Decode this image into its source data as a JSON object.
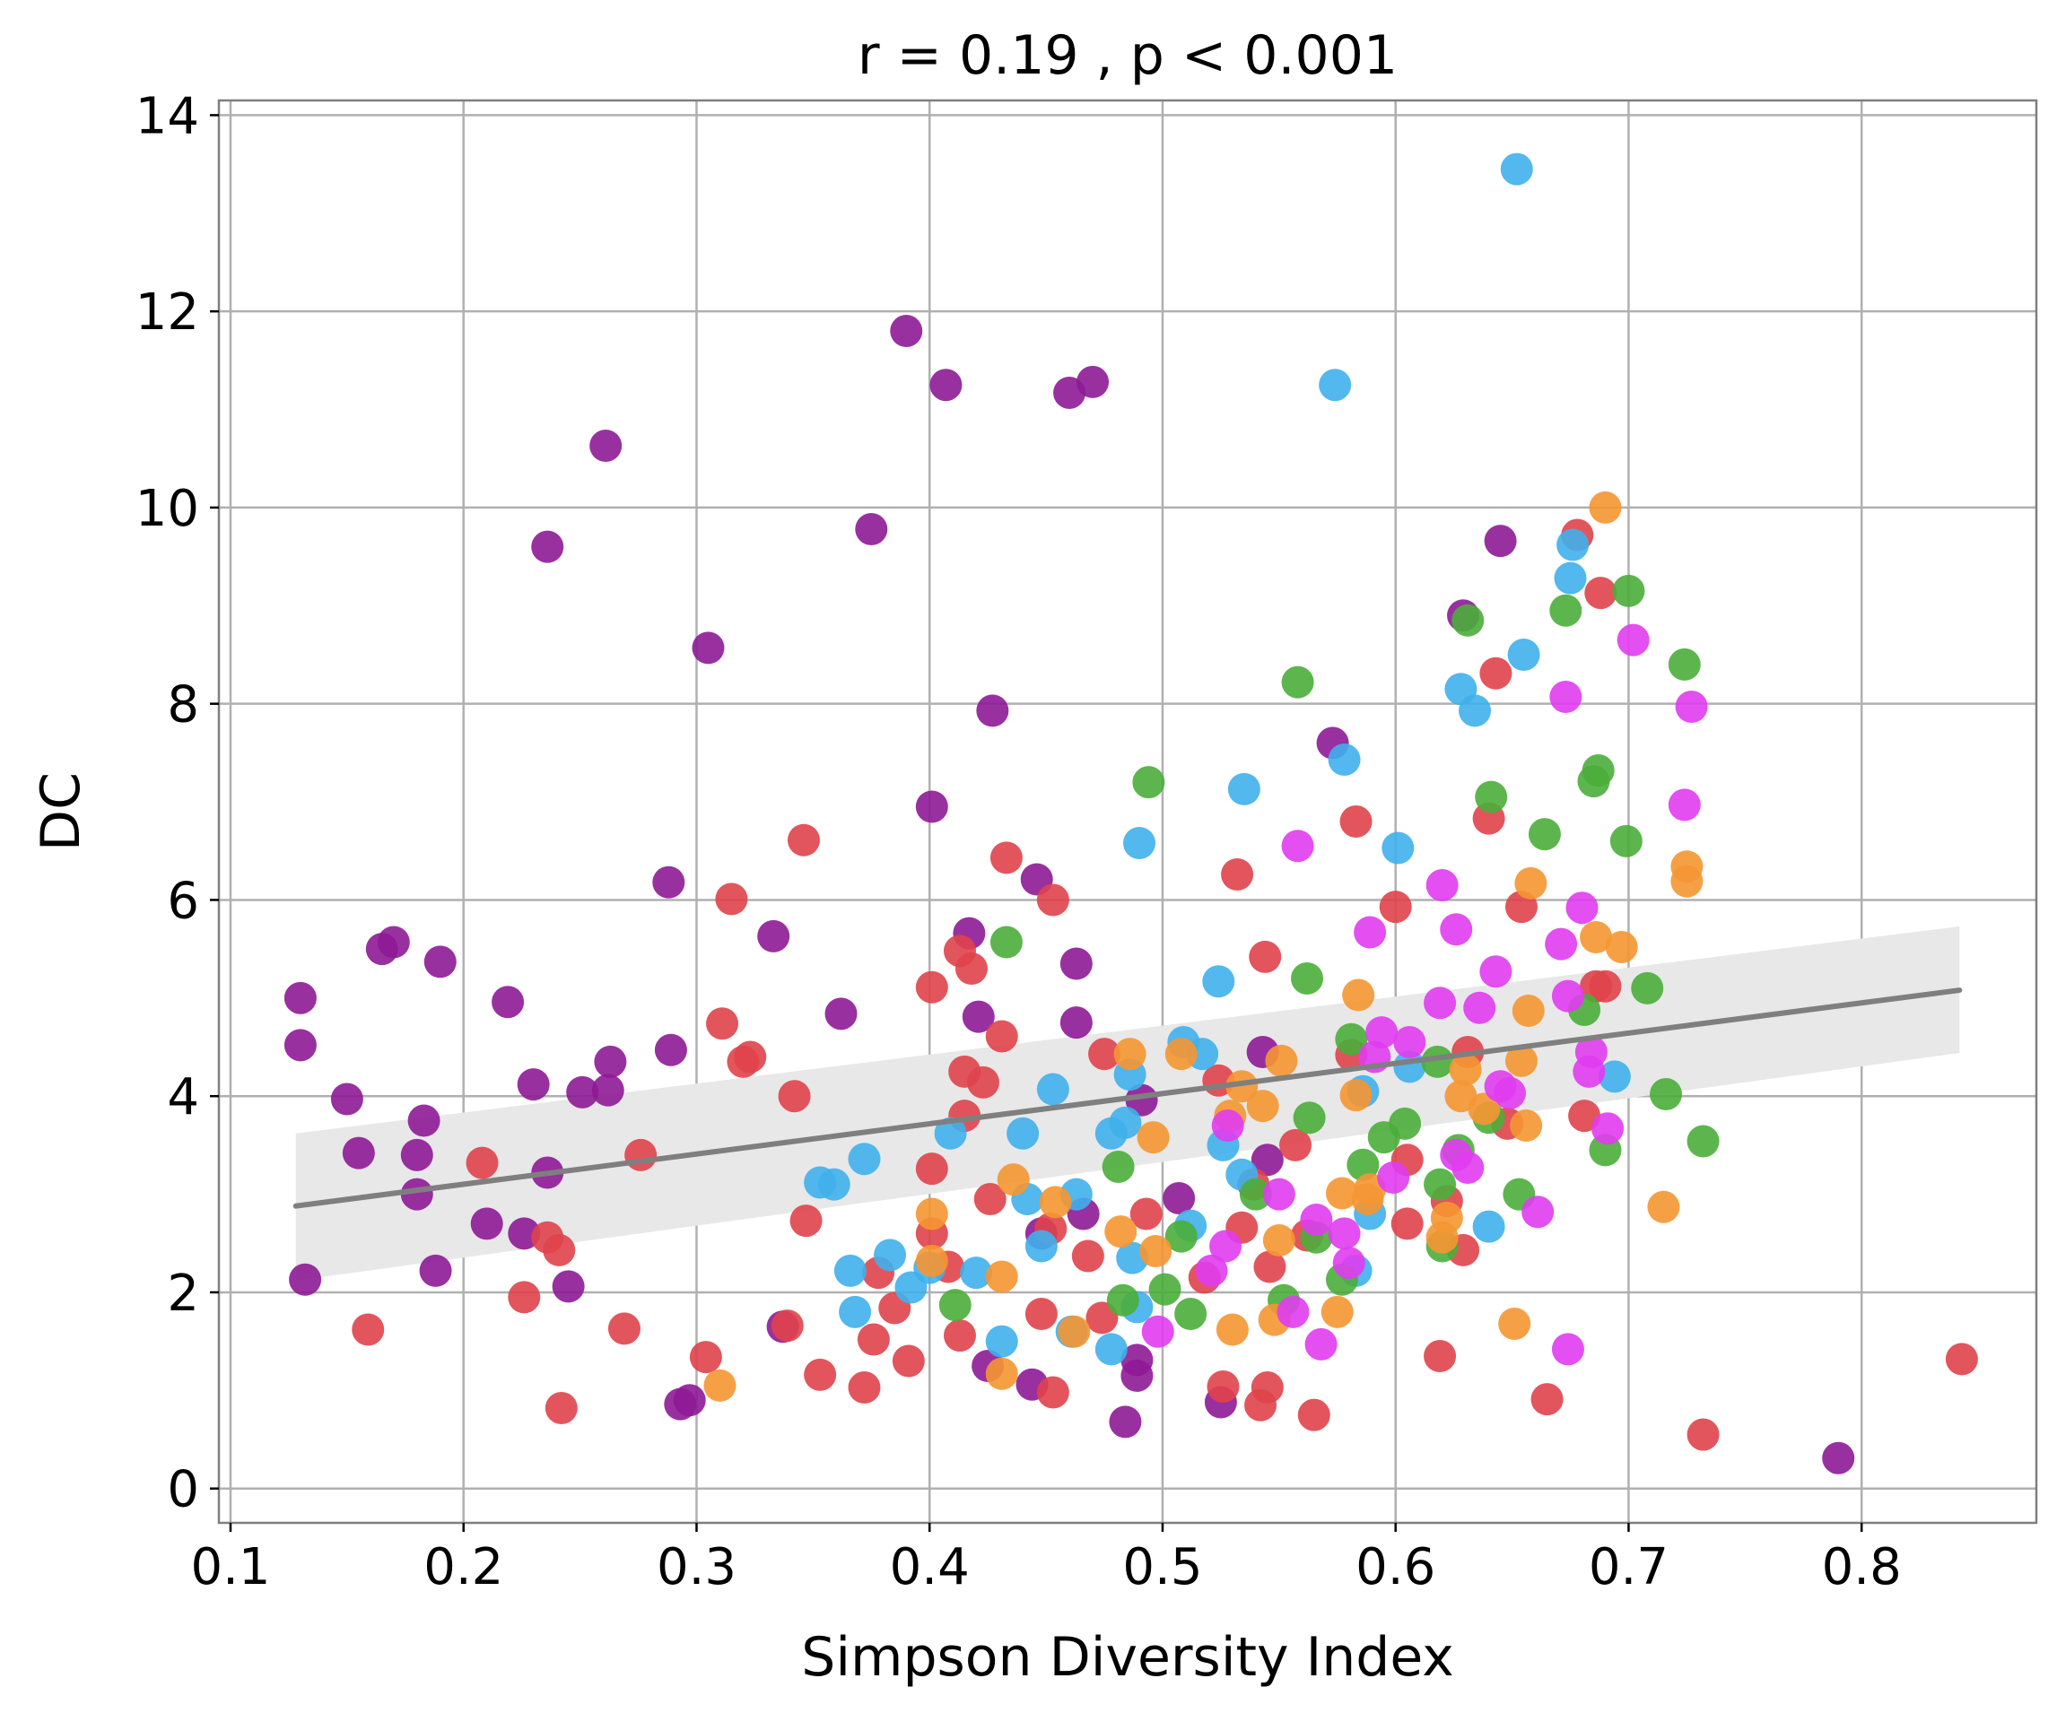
{
  "chart_data": {
    "type": "scatter",
    "title": "r = 0.19 , p <  0.001",
    "xlabel": "Simpson Diversity Index",
    "ylabel": "DC",
    "xlim": [
      0.095,
      0.875
    ],
    "ylim": [
      -0.35,
      14.15
    ],
    "xticks": [
      0.1,
      0.2,
      0.3,
      0.4,
      0.5,
      0.6,
      0.7,
      0.8
    ],
    "xtick_labels": [
      "0.1",
      "0.2",
      "0.3",
      "0.4",
      "0.5",
      "0.6",
      "0.7",
      "0.8"
    ],
    "yticks": [
      0,
      2,
      4,
      6,
      8,
      10,
      12,
      14
    ],
    "ytick_labels": [
      "0",
      "2",
      "4",
      "6",
      "8",
      "10",
      "12",
      "14"
    ],
    "grid": true,
    "legend": "none",
    "colors": {
      "purple": "#8e1a96",
      "red": "#e0434a",
      "blue": "#3fb0ec",
      "green": "#4aae3a",
      "orange": "#f59632",
      "magenta": "#e03cf0",
      "regression_line": "#7f7f7f",
      "confidence_band": "#e8e8e8"
    },
    "series": [
      {
        "color_key": "purple",
        "points": [
          [
            0.13,
            5.0
          ],
          [
            0.13,
            4.52
          ],
          [
            0.132,
            2.13
          ],
          [
            0.15,
            3.97
          ],
          [
            0.155,
            3.42
          ],
          [
            0.165,
            5.5
          ],
          [
            0.17,
            5.57
          ],
          [
            0.18,
            3.0
          ],
          [
            0.18,
            3.4
          ],
          [
            0.183,
            3.75
          ],
          [
            0.188,
            2.22
          ],
          [
            0.19,
            5.37
          ],
          [
            0.21,
            2.7
          ],
          [
            0.219,
            4.96
          ],
          [
            0.226,
            2.6
          ],
          [
            0.23,
            4.12
          ],
          [
            0.236,
            3.22
          ],
          [
            0.236,
            9.6
          ],
          [
            0.245,
            2.06
          ],
          [
            0.251,
            4.04
          ],
          [
            0.262,
            4.06
          ],
          [
            0.261,
            10.63
          ],
          [
            0.263,
            4.35
          ],
          [
            0.288,
            6.18
          ],
          [
            0.289,
            4.47
          ],
          [
            0.293,
            0.86
          ],
          [
            0.297,
            0.9
          ],
          [
            0.305,
            8.57
          ],
          [
            0.333,
            5.63
          ],
          [
            0.337,
            1.65
          ],
          [
            0.362,
            4.84
          ],
          [
            0.375,
            9.78
          ],
          [
            0.39,
            11.8
          ],
          [
            0.401,
            6.95
          ],
          [
            0.407,
            11.25
          ],
          [
            0.417,
            5.66
          ],
          [
            0.421,
            4.81
          ],
          [
            0.425,
            1.25
          ],
          [
            0.427,
            7.93
          ],
          [
            0.444,
            1.06
          ],
          [
            0.446,
            6.21
          ],
          [
            0.448,
            2.6
          ],
          [
            0.46,
            11.17
          ],
          [
            0.463,
            5.35
          ],
          [
            0.463,
            4.75
          ],
          [
            0.466,
            2.8
          ],
          [
            0.47,
            11.28
          ],
          [
            0.484,
            0.68
          ],
          [
            0.489,
            1.15
          ],
          [
            0.489,
            1.31
          ],
          [
            0.491,
            3.96
          ],
          [
            0.507,
            2.96
          ],
          [
            0.525,
            0.88
          ],
          [
            0.543,
            4.45
          ],
          [
            0.545,
            3.35
          ],
          [
            0.573,
            7.6
          ],
          [
            0.629,
            8.9
          ],
          [
            0.645,
            9.66
          ],
          [
            0.79,
            0.31
          ]
        ]
      },
      {
        "color_key": "red",
        "points": [
          [
            0.159,
            1.62
          ],
          [
            0.208,
            3.32
          ],
          [
            0.226,
            1.95
          ],
          [
            0.236,
            2.56
          ],
          [
            0.241,
            2.43
          ],
          [
            0.242,
            0.82
          ],
          [
            0.269,
            1.63
          ],
          [
            0.276,
            3.4
          ],
          [
            0.304,
            1.34
          ],
          [
            0.311,
            4.74
          ],
          [
            0.315,
            6.01
          ],
          [
            0.32,
            4.35
          ],
          [
            0.323,
            4.4
          ],
          [
            0.339,
            1.66
          ],
          [
            0.342,
            4.0
          ],
          [
            0.346,
            6.61
          ],
          [
            0.347,
            2.73
          ],
          [
            0.353,
            1.16
          ],
          [
            0.372,
            1.03
          ],
          [
            0.376,
            1.52
          ],
          [
            0.378,
            2.2
          ],
          [
            0.385,
            1.84
          ],
          [
            0.391,
            1.3
          ],
          [
            0.401,
            5.11
          ],
          [
            0.401,
            3.26
          ],
          [
            0.401,
            2.6
          ],
          [
            0.408,
            2.26
          ],
          [
            0.413,
            5.48
          ],
          [
            0.413,
            1.56
          ],
          [
            0.415,
            3.8
          ],
          [
            0.415,
            4.25
          ],
          [
            0.418,
            5.3
          ],
          [
            0.423,
            4.14
          ],
          [
            0.426,
            2.95
          ],
          [
            0.431,
            4.61
          ],
          [
            0.433,
            6.43
          ],
          [
            0.448,
            1.78
          ],
          [
            0.452,
            2.65
          ],
          [
            0.453,
            6.0
          ],
          [
            0.453,
            0.98
          ],
          [
            0.468,
            2.37
          ],
          [
            0.474,
            1.74
          ],
          [
            0.475,
            4.43
          ],
          [
            0.493,
            2.8
          ],
          [
            0.518,
            2.15
          ],
          [
            0.524,
            4.16
          ],
          [
            0.526,
            1.04
          ],
          [
            0.532,
            6.26
          ],
          [
            0.534,
            2.66
          ],
          [
            0.539,
            3.1
          ],
          [
            0.542,
            0.85
          ],
          [
            0.544,
            5.42
          ],
          [
            0.545,
            1.03
          ],
          [
            0.546,
            2.26
          ],
          [
            0.557,
            3.5
          ],
          [
            0.562,
            2.58
          ],
          [
            0.565,
            0.75
          ],
          [
            0.581,
            4.42
          ],
          [
            0.583,
            6.8
          ],
          [
            0.6,
            5.93
          ],
          [
            0.605,
            2.7
          ],
          [
            0.605,
            3.35
          ],
          [
            0.619,
            1.35
          ],
          [
            0.622,
            2.93
          ],
          [
            0.629,
            2.43
          ],
          [
            0.631,
            4.45
          ],
          [
            0.64,
            6.83
          ],
          [
            0.643,
            8.31
          ],
          [
            0.648,
            3.72
          ],
          [
            0.654,
            5.93
          ],
          [
            0.665,
            0.91
          ],
          [
            0.678,
            9.72
          ],
          [
            0.681,
            3.8
          ],
          [
            0.686,
            5.12
          ],
          [
            0.688,
            9.13
          ],
          [
            0.69,
            5.12
          ],
          [
            0.732,
            0.55
          ],
          [
            0.843,
            1.32
          ]
        ]
      },
      {
        "color_key": "blue",
        "points": [
          [
            0.353,
            3.12
          ],
          [
            0.359,
            3.1
          ],
          [
            0.366,
            2.22
          ],
          [
            0.368,
            1.8
          ],
          [
            0.372,
            3.36
          ],
          [
            0.383,
            2.38
          ],
          [
            0.392,
            2.05
          ],
          [
            0.4,
            2.25
          ],
          [
            0.409,
            3.62
          ],
          [
            0.42,
            2.2
          ],
          [
            0.431,
            1.5
          ],
          [
            0.44,
            3.62
          ],
          [
            0.442,
            2.95
          ],
          [
            0.448,
            2.47
          ],
          [
            0.453,
            4.07
          ],
          [
            0.461,
            1.6
          ],
          [
            0.463,
            3.0
          ],
          [
            0.478,
            1.42
          ],
          [
            0.478,
            3.62
          ],
          [
            0.484,
            3.73
          ],
          [
            0.486,
            4.22
          ],
          [
            0.487,
            2.35
          ],
          [
            0.489,
            1.85
          ],
          [
            0.49,
            6.58
          ],
          [
            0.509,
            4.55
          ],
          [
            0.512,
            2.68
          ],
          [
            0.517,
            4.43
          ],
          [
            0.524,
            5.17
          ],
          [
            0.526,
            3.5
          ],
          [
            0.534,
            3.2
          ],
          [
            0.535,
            7.13
          ],
          [
            0.574,
            11.25
          ],
          [
            0.578,
            7.43
          ],
          [
            0.583,
            2.22
          ],
          [
            0.586,
            4.05
          ],
          [
            0.589,
            2.8
          ],
          [
            0.601,
            6.53
          ],
          [
            0.606,
            4.3
          ],
          [
            0.628,
            8.15
          ],
          [
            0.634,
            7.93
          ],
          [
            0.64,
            2.67
          ],
          [
            0.652,
            13.45
          ],
          [
            0.655,
            8.5
          ],
          [
            0.675,
            9.28
          ],
          [
            0.676,
            9.62
          ],
          [
            0.694,
            4.2
          ]
        ]
      },
      {
        "color_key": "green",
        "points": [
          [
            0.411,
            1.87
          ],
          [
            0.433,
            5.57
          ],
          [
            0.481,
            3.28
          ],
          [
            0.483,
            1.92
          ],
          [
            0.494,
            7.2
          ],
          [
            0.501,
            2.03
          ],
          [
            0.508,
            2.57
          ],
          [
            0.512,
            1.78
          ],
          [
            0.54,
            3.0
          ],
          [
            0.552,
            1.92
          ],
          [
            0.558,
            8.22
          ],
          [
            0.562,
            5.2
          ],
          [
            0.563,
            3.78
          ],
          [
            0.566,
            2.56
          ],
          [
            0.577,
            2.13
          ],
          [
            0.581,
            4.58
          ],
          [
            0.586,
            3.3
          ],
          [
            0.595,
            3.58
          ],
          [
            0.604,
            3.72
          ],
          [
            0.618,
            4.35
          ],
          [
            0.619,
            3.1
          ],
          [
            0.62,
            2.47
          ],
          [
            0.627,
            3.45
          ],
          [
            0.631,
            8.85
          ],
          [
            0.64,
            3.78
          ],
          [
            0.641,
            7.05
          ],
          [
            0.653,
            3.0
          ],
          [
            0.664,
            6.67
          ],
          [
            0.673,
            8.95
          ],
          [
            0.681,
            4.88
          ],
          [
            0.685,
            7.21
          ],
          [
            0.687,
            7.32
          ],
          [
            0.69,
            3.45
          ],
          [
            0.699,
            6.6
          ],
          [
            0.7,
            9.15
          ],
          [
            0.708,
            5.1
          ],
          [
            0.716,
            4.02
          ],
          [
            0.724,
            8.4
          ],
          [
            0.732,
            3.54
          ]
        ]
      },
      {
        "color_key": "orange",
        "points": [
          [
            0.31,
            1.05
          ],
          [
            0.401,
            2.8
          ],
          [
            0.401,
            2.32
          ],
          [
            0.431,
            1.17
          ],
          [
            0.431,
            2.16
          ],
          [
            0.436,
            3.15
          ],
          [
            0.454,
            2.92
          ],
          [
            0.462,
            1.6
          ],
          [
            0.482,
            2.62
          ],
          [
            0.486,
            4.43
          ],
          [
            0.496,
            3.58
          ],
          [
            0.497,
            2.42
          ],
          [
            0.508,
            4.43
          ],
          [
            0.529,
            3.8
          ],
          [
            0.53,
            1.62
          ],
          [
            0.534,
            4.1
          ],
          [
            0.543,
            3.9
          ],
          [
            0.548,
            1.72
          ],
          [
            0.55,
            2.53
          ],
          [
            0.551,
            4.36
          ],
          [
            0.575,
            1.8
          ],
          [
            0.577,
            3.01
          ],
          [
            0.583,
            4.01
          ],
          [
            0.584,
            5.03
          ],
          [
            0.588,
            2.95
          ],
          [
            0.589,
            3.05
          ],
          [
            0.62,
            2.56
          ],
          [
            0.622,
            2.76
          ],
          [
            0.628,
            4.0
          ],
          [
            0.63,
            4.27
          ],
          [
            0.638,
            3.87
          ],
          [
            0.651,
            1.68
          ],
          [
            0.654,
            4.36
          ],
          [
            0.656,
            3.7
          ],
          [
            0.657,
            4.87
          ],
          [
            0.658,
            6.17
          ],
          [
            0.686,
            5.62
          ],
          [
            0.69,
            10.0
          ],
          [
            0.697,
            5.52
          ],
          [
            0.715,
            2.87
          ],
          [
            0.725,
            6.34
          ],
          [
            0.725,
            6.19
          ]
        ]
      },
      {
        "color_key": "magenta",
        "points": [
          [
            0.498,
            1.6
          ],
          [
            0.521,
            2.22
          ],
          [
            0.527,
            2.47
          ],
          [
            0.528,
            3.7
          ],
          [
            0.55,
            3.0
          ],
          [
            0.556,
            1.8
          ],
          [
            0.558,
            6.55
          ],
          [
            0.566,
            2.74
          ],
          [
            0.568,
            1.47
          ],
          [
            0.578,
            2.6
          ],
          [
            0.58,
            2.3
          ],
          [
            0.589,
            5.67
          ],
          [
            0.591,
            4.4
          ],
          [
            0.594,
            4.65
          ],
          [
            0.599,
            3.17
          ],
          [
            0.606,
            4.55
          ],
          [
            0.619,
            4.95
          ],
          [
            0.62,
            6.15
          ],
          [
            0.626,
            3.4
          ],
          [
            0.626,
            5.7
          ],
          [
            0.631,
            3.27
          ],
          [
            0.636,
            4.9
          ],
          [
            0.643,
            5.27
          ],
          [
            0.645,
            4.1
          ],
          [
            0.649,
            4.03
          ],
          [
            0.661,
            2.82
          ],
          [
            0.671,
            5.55
          ],
          [
            0.673,
            8.07
          ],
          [
            0.674,
            1.42
          ],
          [
            0.674,
            5.02
          ],
          [
            0.68,
            5.92
          ],
          [
            0.683,
            4.25
          ],
          [
            0.684,
            4.45
          ],
          [
            0.691,
            3.67
          ],
          [
            0.702,
            8.65
          ],
          [
            0.724,
            6.97
          ],
          [
            0.727,
            7.97
          ]
        ]
      }
    ],
    "regression": {
      "x": [
        0.128,
        0.842
      ],
      "y": [
        2.88,
        5.08
      ],
      "band_lower": [
        2.12,
        4.44
      ],
      "band_upper": [
        3.62,
        5.73
      ]
    }
  }
}
